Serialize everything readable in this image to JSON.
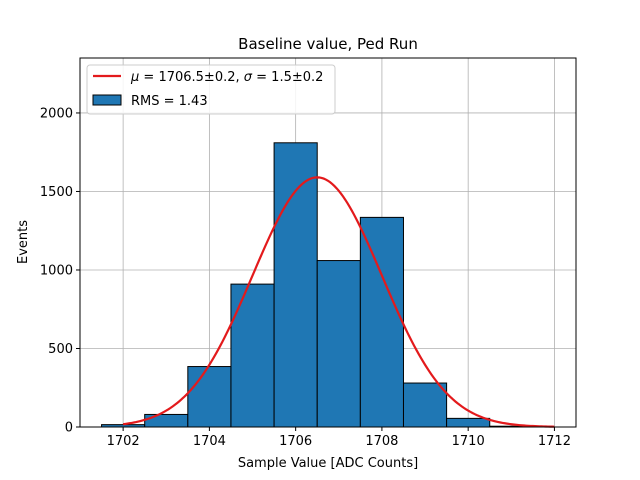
{
  "chart_data": {
    "type": "bar",
    "title": "Baseline value, Ped Run",
    "xlabel": "Sample Value [ADC Counts]",
    "ylabel": "Events",
    "xlim": [
      1701,
      1712.5
    ],
    "ylim": [
      0,
      2350
    ],
    "grid": true,
    "legend_position": "top-left",
    "xticks": [
      1702,
      1704,
      1706,
      1708,
      1710,
      1712
    ],
    "yticks": [
      0,
      500,
      1000,
      1500,
      2000
    ],
    "histogram": {
      "name": "RMS = 1.43",
      "color": "#1f77b4",
      "edgecolor": "#000000",
      "bins": [
        {
          "x0": 1701.5,
          "x1": 1702.5,
          "value": 15
        },
        {
          "x0": 1702.5,
          "x1": 1703.5,
          "value": 80
        },
        {
          "x0": 1703.5,
          "x1": 1704.5,
          "value": 385
        },
        {
          "x0": 1704.5,
          "x1": 1705.5,
          "value": 910
        },
        {
          "x0": 1705.5,
          "x1": 1706.5,
          "value": 1810
        },
        {
          "x0": 1706.5,
          "x1": 1707.5,
          "value": 1060
        },
        {
          "x0": 1707.5,
          "x1": 1708.5,
          "value": 1335
        },
        {
          "x0": 1708.5,
          "x1": 1709.5,
          "value": 280
        },
        {
          "x0": 1709.5,
          "x1": 1710.5,
          "value": 55
        },
        {
          "x0": 1710.5,
          "x1": 1711.5,
          "value": 5
        }
      ]
    },
    "fit": {
      "name": "μ = 1706.5±0.2, σ = 1.5±0.2",
      "name_parts": {
        "mu": "μ",
        "mu_text": " = 1706.5±0.2, ",
        "sigma": "σ",
        "sigma_text": " = 1.5±0.2"
      },
      "color": "#e31a1c",
      "function": "gaussian",
      "mu": 1706.5,
      "sigma": 1.5,
      "amplitude": 1590,
      "x_range": [
        1702,
        1712
      ]
    }
  }
}
